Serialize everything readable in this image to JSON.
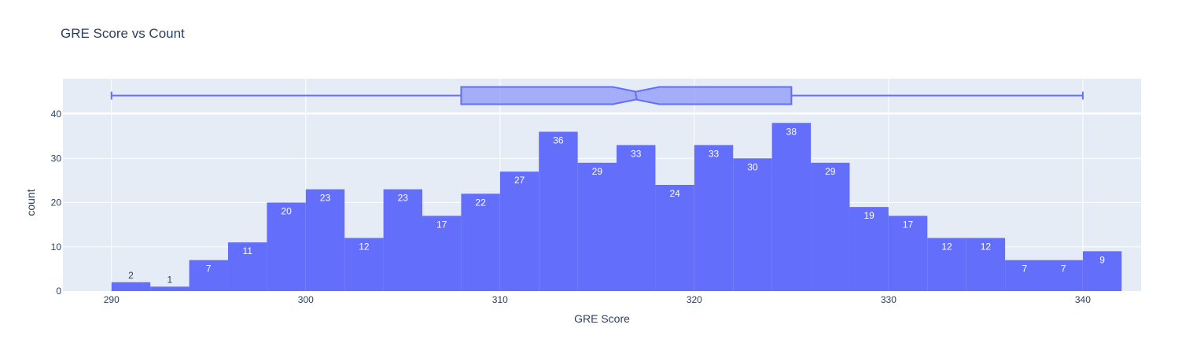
{
  "chart_data": {
    "type": "bar",
    "title": "GRE Score vs Count",
    "xlabel": "GRE Score",
    "ylabel": "count",
    "bin_size": 2,
    "bins": [
      {
        "start": 290,
        "end": 292,
        "count": 2
      },
      {
        "start": 292,
        "end": 294,
        "count": 1
      },
      {
        "start": 294,
        "end": 296,
        "count": 7
      },
      {
        "start": 296,
        "end": 298,
        "count": 11
      },
      {
        "start": 298,
        "end": 300,
        "count": 20
      },
      {
        "start": 300,
        "end": 302,
        "count": 23
      },
      {
        "start": 302,
        "end": 304,
        "count": 12
      },
      {
        "start": 304,
        "end": 306,
        "count": 23
      },
      {
        "start": 306,
        "end": 308,
        "count": 17
      },
      {
        "start": 308,
        "end": 310,
        "count": 22
      },
      {
        "start": 310,
        "end": 312,
        "count": 27
      },
      {
        "start": 312,
        "end": 314,
        "count": 36
      },
      {
        "start": 314,
        "end": 316,
        "count": 29
      },
      {
        "start": 316,
        "end": 318,
        "count": 33
      },
      {
        "start": 318,
        "end": 320,
        "count": 24
      },
      {
        "start": 320,
        "end": 322,
        "count": 33
      },
      {
        "start": 322,
        "end": 324,
        "count": 30
      },
      {
        "start": 324,
        "end": 326,
        "count": 38
      },
      {
        "start": 326,
        "end": 328,
        "count": 29
      },
      {
        "start": 328,
        "end": 330,
        "count": 19
      },
      {
        "start": 330,
        "end": 332,
        "count": 17
      },
      {
        "start": 332,
        "end": 334,
        "count": 12
      },
      {
        "start": 334,
        "end": 336,
        "count": 12
      },
      {
        "start": 336,
        "end": 338,
        "count": 7
      },
      {
        "start": 338,
        "end": 340,
        "count": 7
      },
      {
        "start": 340,
        "end": 342,
        "count": 9
      }
    ],
    "xlim": [
      287.5,
      343
    ],
    "ylim": [
      0,
      40
    ],
    "x_ticks": [
      290,
      300,
      310,
      320,
      330,
      340
    ],
    "y_ticks": [
      0,
      10,
      20,
      30,
      40
    ],
    "grid": true,
    "marginal_box": {
      "type": "box",
      "notched": true,
      "lower_whisker": 290,
      "q1": 308,
      "median": 317,
      "notch_low": 315.8,
      "notch_high": 318.2,
      "q3": 325,
      "upper_whisker": 340
    },
    "colors": {
      "bar": "#636efa",
      "box_fill": "rgba(99,110,250,0.5)",
      "plot_bg": "#e5ecf6",
      "grid": "#ffffff",
      "text": "#2a3f5f"
    }
  }
}
